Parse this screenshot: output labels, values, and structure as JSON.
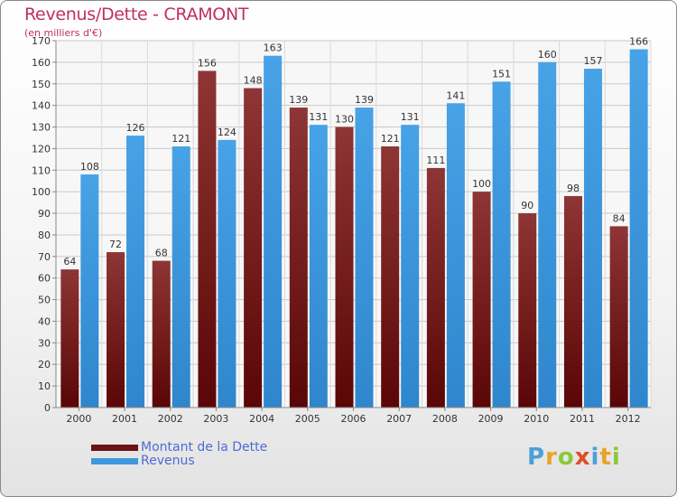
{
  "title": "Revenus/Dette - CRAMONT",
  "subtitle": "(en milliers d'€)",
  "logo": {
    "letters": [
      "P",
      "r",
      "o",
      "x",
      "i",
      "t",
      "i"
    ],
    "colors": [
      "#4aa0d8",
      "#e8a32a",
      "#8cc83c",
      "#e04d2a",
      "#4aa0d8",
      "#e8a32a",
      "#8cc83c"
    ]
  },
  "legend": [
    {
      "label": "Montant de la Dette",
      "color": "#6b1414"
    },
    {
      "label": "Revenus",
      "color": "#3f97dd"
    }
  ],
  "chart_data": {
    "type": "bar",
    "categories": [
      "2000",
      "2001",
      "2002",
      "2003",
      "2004",
      "2005",
      "2006",
      "2007",
      "2008",
      "2009",
      "2010",
      "2011",
      "2012"
    ],
    "series": [
      {
        "name": "Montant de la Dette",
        "color": "#7a1f1f",
        "values": [
          64,
          72,
          68,
          156,
          148,
          139,
          130,
          121,
          111,
          100,
          90,
          98,
          84
        ]
      },
      {
        "name": "Revenus",
        "color": "#3f97dd",
        "values": [
          108,
          126,
          121,
          124,
          163,
          131,
          139,
          131,
          141,
          151,
          160,
          157,
          166
        ]
      }
    ],
    "ylim": [
      0,
      170
    ],
    "yticks": [
      0,
      10,
      20,
      30,
      40,
      50,
      60,
      70,
      80,
      90,
      100,
      110,
      120,
      130,
      140,
      150,
      160,
      170
    ],
    "grid": true,
    "legend_position": "bottom-left"
  }
}
